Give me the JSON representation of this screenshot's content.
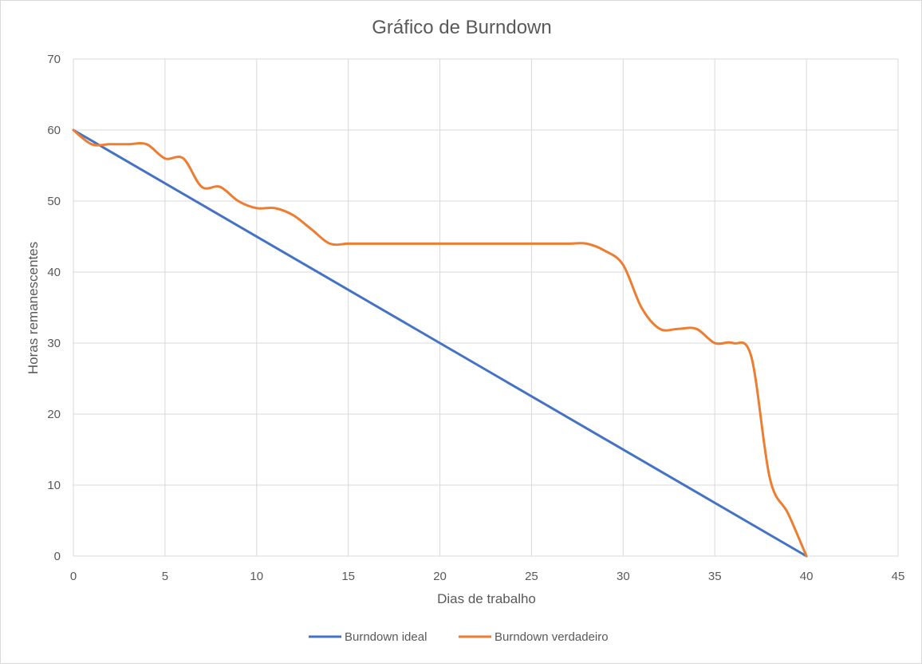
{
  "chart_data": {
    "type": "line",
    "title": "Gráfico de Burndown",
    "xlabel": "Dias de trabalho",
    "ylabel": "Horas remanescentes",
    "xlim": [
      0,
      45
    ],
    "ylim": [
      0,
      70
    ],
    "x_ticks": [
      0,
      5,
      10,
      15,
      20,
      25,
      30,
      35,
      40,
      45
    ],
    "y_ticks": [
      0,
      10,
      20,
      30,
      40,
      50,
      60,
      70
    ],
    "grid": true,
    "legend_position": "bottom",
    "series": [
      {
        "name": "Burndown ideal",
        "color": "#4472C4",
        "smooth": false,
        "x": [
          0,
          40
        ],
        "y": [
          60,
          0
        ]
      },
      {
        "name": "Burndown verdadeiro",
        "color": "#ED7D31",
        "smooth": true,
        "x": [
          0,
          1,
          2,
          3,
          4,
          5,
          6,
          7,
          8,
          9,
          10,
          11,
          12,
          13,
          14,
          15,
          16,
          17,
          18,
          19,
          20,
          21,
          22,
          23,
          24,
          25,
          26,
          27,
          28,
          29,
          30,
          31,
          32,
          33,
          34,
          35,
          36,
          37,
          38,
          39,
          40
        ],
        "y": [
          60,
          58,
          58,
          58,
          58,
          56,
          56,
          52,
          52,
          50,
          49,
          49,
          48,
          46,
          44,
          44,
          44,
          44,
          44,
          44,
          44,
          44,
          44,
          44,
          44,
          44,
          44,
          44,
          44,
          43,
          41,
          35,
          32,
          32,
          32,
          30,
          30,
          28,
          11,
          6,
          0
        ]
      }
    ]
  }
}
